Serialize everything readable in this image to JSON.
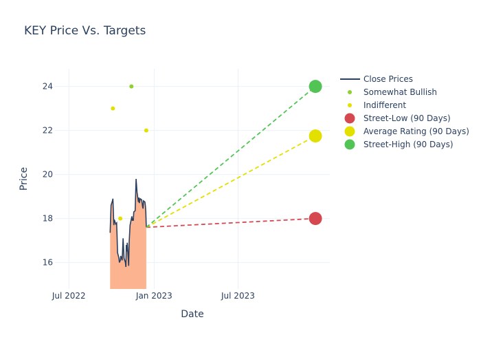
{
  "chart_data": {
    "type": "line",
    "title": "KEY Price Vs. Targets",
    "xlabel": "Date",
    "ylabel": "Price",
    "xlim": [
      "2022-06-01",
      "2024-01-15"
    ],
    "ylim": [
      14.8,
      24.8
    ],
    "x_ticks": [
      {
        "date": "2022-07-01",
        "label": "Jul 2022"
      },
      {
        "date": "2023-01-01",
        "label": "Jan 2023"
      },
      {
        "date": "2023-07-01",
        "label": "Jul 2023"
      }
    ],
    "y_ticks": [
      16,
      18,
      20,
      22,
      24
    ],
    "grid": true,
    "legend_position": "right",
    "colors": {
      "close": "#2a3f5f",
      "area_fill": "#fbb48f",
      "somewhat_bullish": "#8fd12e",
      "indifferent": "#e3e000",
      "street_low": "#d64850",
      "average": "#e3e000",
      "street_high": "#52c456"
    },
    "series": [
      {
        "name": "Close Prices",
        "points": [
          [
            "2022-09-28",
            17.35
          ],
          [
            "2022-09-30",
            18.6
          ],
          [
            "2022-10-03",
            18.8
          ],
          [
            "2022-10-04",
            18.9
          ],
          [
            "2022-10-06",
            17.7
          ],
          [
            "2022-10-07",
            17.95
          ],
          [
            "2022-10-10",
            17.75
          ],
          [
            "2022-10-12",
            17.8
          ],
          [
            "2022-10-13",
            17.2
          ],
          [
            "2022-10-14",
            16.45
          ],
          [
            "2022-10-17",
            16.2
          ],
          [
            "2022-10-18",
            16.0
          ],
          [
            "2022-10-20",
            16.1
          ],
          [
            "2022-10-21",
            16.3
          ],
          [
            "2022-10-24",
            16.1
          ],
          [
            "2022-10-26",
            17.1
          ],
          [
            "2022-10-28",
            16.2
          ],
          [
            "2022-10-31",
            16.0
          ],
          [
            "2022-11-01",
            15.8
          ],
          [
            "2022-11-02",
            16.8
          ],
          [
            "2022-11-03",
            16.5
          ],
          [
            "2022-11-04",
            16.9
          ],
          [
            "2022-11-07",
            15.85
          ],
          [
            "2022-11-08",
            16.9
          ],
          [
            "2022-11-10",
            17.7
          ],
          [
            "2022-11-11",
            17.8
          ],
          [
            "2022-11-14",
            18.1
          ],
          [
            "2022-11-15",
            17.9
          ],
          [
            "2022-11-16",
            18.0
          ],
          [
            "2022-11-17",
            17.9
          ],
          [
            "2022-11-18",
            18.3
          ],
          [
            "2022-11-21",
            18.35
          ],
          [
            "2022-11-23",
            19.8
          ],
          [
            "2022-11-25",
            19.2
          ],
          [
            "2022-11-28",
            18.75
          ],
          [
            "2022-11-29",
            18.95
          ],
          [
            "2022-11-30",
            18.7
          ],
          [
            "2022-12-01",
            18.8
          ],
          [
            "2022-12-02",
            18.9
          ],
          [
            "2022-12-05",
            18.85
          ],
          [
            "2022-12-06",
            18.7
          ],
          [
            "2022-12-07",
            18.55
          ],
          [
            "2022-12-08",
            18.45
          ],
          [
            "2022-12-09",
            18.8
          ],
          [
            "2022-12-12",
            18.75
          ],
          [
            "2022-12-13",
            18.6
          ],
          [
            "2022-12-14",
            18.3
          ],
          [
            "2022-12-15",
            17.6
          ]
        ]
      },
      {
        "name": "Somewhat Bullish",
        "points": [
          [
            "2022-11-13",
            24.0
          ]
        ]
      },
      {
        "name": "Indifferent",
        "points": [
          [
            "2022-10-04",
            23.0
          ],
          [
            "2022-10-20",
            18.0
          ],
          [
            "2022-12-15",
            22.0
          ]
        ]
      },
      {
        "name": "Street-Low (90 Days)",
        "points": [
          [
            "2022-12-15",
            17.6
          ],
          [
            "2023-12-15",
            18.0
          ]
        ]
      },
      {
        "name": "Average Rating (90 Days)",
        "points": [
          [
            "2022-12-15",
            17.6
          ],
          [
            "2023-12-15",
            21.75
          ]
        ]
      },
      {
        "name": "Street-High (90 Days)",
        "points": [
          [
            "2022-12-15",
            17.6
          ],
          [
            "2023-12-15",
            24.0
          ]
        ]
      }
    ],
    "legend": [
      {
        "label": "Close Prices",
        "symbol": "line",
        "color": "#2a3f5f"
      },
      {
        "label": "Somewhat Bullish",
        "symbol": "small-dot",
        "color": "#8fd12e"
      },
      {
        "label": "Indifferent",
        "symbol": "small-dot",
        "color": "#e3e000"
      },
      {
        "label": "Street-Low (90 Days)",
        "symbol": "big-dot",
        "color": "#d64850"
      },
      {
        "label": "Average Rating (90 Days)",
        "symbol": "big-dot",
        "color": "#e3e000"
      },
      {
        "label": "Street-High (90 Days)",
        "symbol": "big-dot",
        "color": "#52c456"
      }
    ]
  }
}
